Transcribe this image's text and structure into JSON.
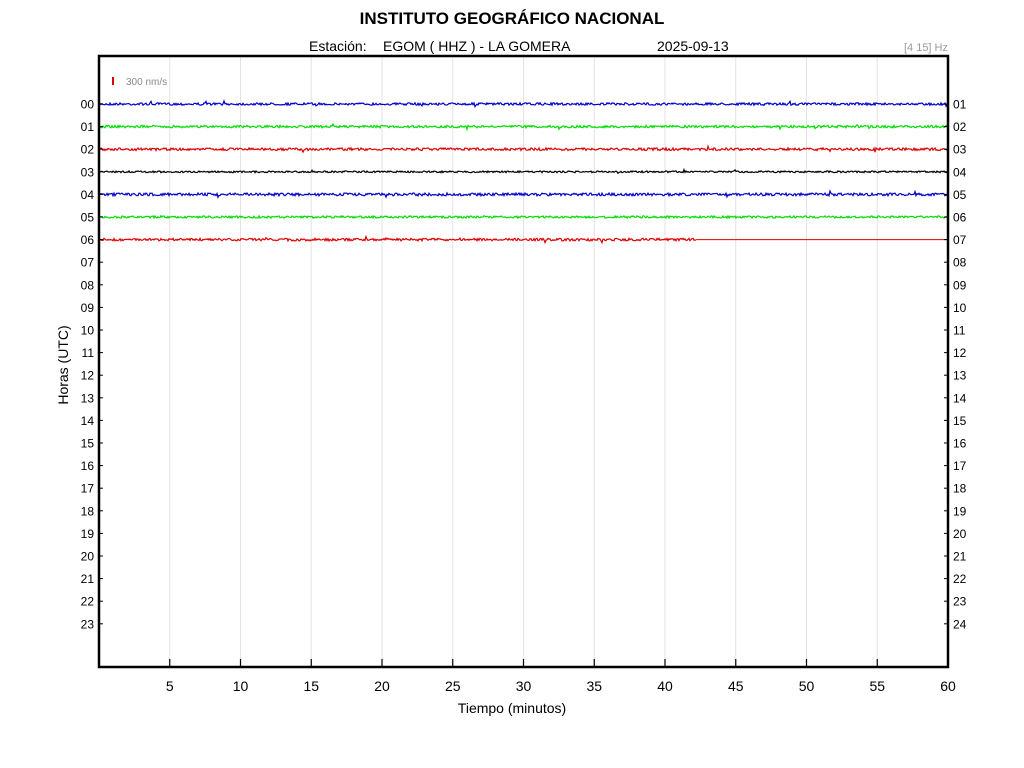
{
  "header": {
    "title": "INSTITUTO GEOGRÁFICO NACIONAL",
    "station_label": "Estación:",
    "station": "EGOM ( HHZ ) - LA GOMERA",
    "date": "2025-09-13",
    "filter": "[4 15] Hz"
  },
  "chart_data": {
    "type": "line",
    "title": "INSTITUTO GEOGRÁFICO NACIONAL",
    "xlabel": "Tiempo (minutos)",
    "ylabel": "Horas (UTC)",
    "xlim": [
      0,
      60
    ],
    "x_ticks": [
      5,
      10,
      15,
      20,
      25,
      30,
      35,
      40,
      45,
      50,
      55,
      60
    ],
    "grid_x": true,
    "left_hours": [
      "00",
      "01",
      "02",
      "03",
      "04",
      "05",
      "06",
      "07",
      "08",
      "09",
      "10",
      "11",
      "12",
      "13",
      "14",
      "15",
      "16",
      "17",
      "18",
      "19",
      "20",
      "21",
      "22",
      "23"
    ],
    "right_hours": [
      "01",
      "02",
      "03",
      "04",
      "05",
      "06",
      "07",
      "08",
      "09",
      "10",
      "11",
      "12",
      "13",
      "14",
      "15",
      "16",
      "17",
      "18",
      "19",
      "20",
      "21",
      "22",
      "23",
      "24"
    ],
    "scale_label": "300 nm/s",
    "scale_color": "#dd0000",
    "traces": [
      {
        "hour": "00",
        "color": "#0000cc",
        "end_minute": 60,
        "noise": 1.2
      },
      {
        "hour": "01",
        "color": "#00dd00",
        "end_minute": 60,
        "noise": 1.2
      },
      {
        "hour": "02",
        "color": "#dd0000",
        "end_minute": 60,
        "noise": 1.3
      },
      {
        "hour": "03",
        "color": "#000000",
        "end_minute": 60,
        "noise": 0.9
      },
      {
        "hour": "04",
        "color": "#0000cc",
        "end_minute": 60,
        "noise": 1.4
      },
      {
        "hour": "05",
        "color": "#00dd00",
        "end_minute": 60,
        "noise": 1.1
      },
      {
        "hour": "06",
        "color": "#dd0000",
        "end_minute": 42.2,
        "noise": 1.3
      }
    ]
  }
}
